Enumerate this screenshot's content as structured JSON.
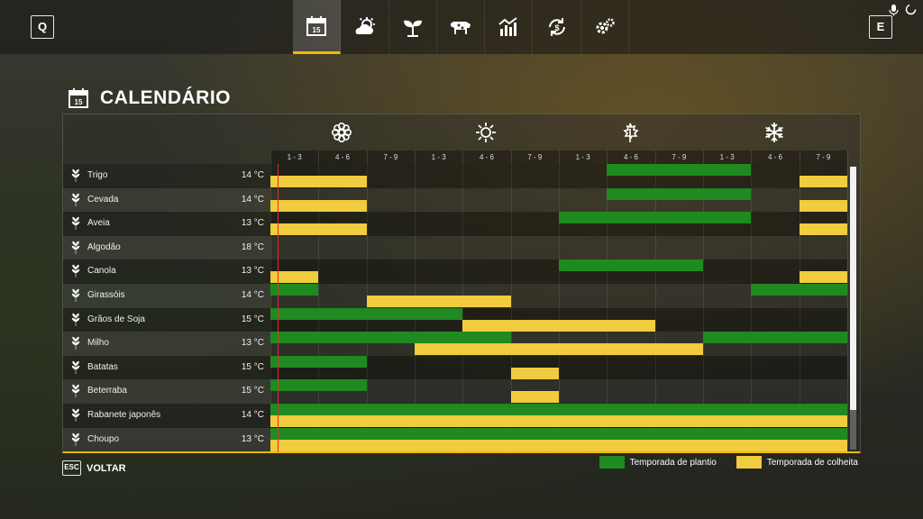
{
  "topbar": {
    "left_key": "Q",
    "right_key": "E",
    "tabs": [
      {
        "icon": "calendar-icon",
        "label": "15",
        "active": true
      },
      {
        "icon": "weather-icon"
      },
      {
        "icon": "plant-icon"
      },
      {
        "icon": "cow-icon"
      },
      {
        "icon": "statistics-icon"
      },
      {
        "icon": "finance-icon"
      },
      {
        "icon": "settings-icon"
      }
    ]
  },
  "title": {
    "text": "CALENDÁRIO",
    "icon_label": "15"
  },
  "seasons": [
    "spring-flower-icon",
    "summer-sun-icon",
    "autumn-leaf-icon",
    "winter-snowflake-icon"
  ],
  "periods": [
    "1 - 3",
    "4 - 6",
    "7 - 9",
    "1 - 3",
    "4 - 6",
    "7 - 9",
    "1 - 3",
    "4 - 6",
    "7 - 9",
    "1 - 3",
    "4 - 6",
    "7 - 9"
  ],
  "crops": [
    {
      "name": "Trigo",
      "temp": "14 °C",
      "icon": "wheat-icon",
      "plant": [
        [
          7,
          9
        ]
      ],
      "harvest": [
        [
          0,
          1
        ],
        [
          11,
          11
        ]
      ]
    },
    {
      "name": "Cevada",
      "temp": "14 °C",
      "icon": "barley-icon",
      "plant": [
        [
          7,
          9
        ]
      ],
      "harvest": [
        [
          0,
          1
        ],
        [
          11,
          11
        ]
      ]
    },
    {
      "name": "Aveia",
      "temp": "13 °C",
      "icon": "oat-icon",
      "plant": [
        [
          6,
          9
        ]
      ],
      "harvest": [
        [
          0,
          1
        ],
        [
          11,
          11
        ]
      ]
    },
    {
      "name": "Algodão",
      "temp": "18 °C",
      "icon": "cotton-icon",
      "plant": [],
      "harvest": []
    },
    {
      "name": "Canola",
      "temp": "13 °C",
      "icon": "canola-icon",
      "plant": [
        [
          6,
          8
        ]
      ],
      "harvest": [
        [
          0,
          0
        ],
        [
          11,
          11
        ]
      ]
    },
    {
      "name": "Girassóis",
      "temp": "14 °C",
      "icon": "sunflower-icon",
      "plant": [
        [
          0,
          0
        ],
        [
          10,
          11
        ]
      ],
      "harvest": [
        [
          2,
          4
        ]
      ]
    },
    {
      "name": "Grãos de Soja",
      "temp": "15 °C",
      "icon": "soybean-icon",
      "plant": [
        [
          0,
          3
        ]
      ],
      "harvest": [
        [
          4,
          7
        ]
      ]
    },
    {
      "name": "Milho",
      "temp": "13 °C",
      "icon": "corn-icon",
      "plant": [
        [
          0,
          4
        ],
        [
          9,
          11
        ]
      ],
      "harvest": [
        [
          3,
          8
        ]
      ]
    },
    {
      "name": "Batatas",
      "temp": "15 °C",
      "icon": "potato-icon",
      "plant": [
        [
          0,
          1
        ]
      ],
      "harvest": [
        [
          5,
          5
        ]
      ]
    },
    {
      "name": "Beterraba",
      "temp": "15 °C",
      "icon": "beet-icon",
      "plant": [
        [
          0,
          1
        ]
      ],
      "harvest": [
        [
          5,
          5
        ]
      ]
    },
    {
      "name": "Rabanete japonês",
      "temp": "14 °C",
      "icon": "radish-icon",
      "plant": [
        [
          0,
          11
        ]
      ],
      "harvest": [
        [
          0,
          11
        ]
      ]
    },
    {
      "name": "Choupo",
      "temp": "13 °C",
      "icon": "poplar-icon",
      "plant": [
        [
          0,
          11
        ]
      ],
      "harvest": [
        [
          0,
          11
        ]
      ]
    }
  ],
  "colors": {
    "plant": "#1f8a1f",
    "harvest": "#f0cc3e",
    "accent": "#f2b705",
    "today": "#e0302a"
  },
  "footer": {
    "esc_key": "ESC",
    "back_label": "VOLTAR",
    "legend_plant": "Temporada de plantio",
    "legend_harvest": "Temporada de colheita"
  }
}
